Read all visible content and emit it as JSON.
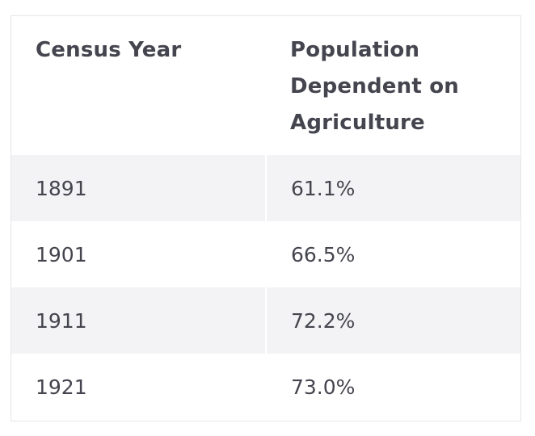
{
  "table": {
    "headers": [
      "Census Year",
      "Population Dependent on Agriculture"
    ],
    "rows": [
      [
        "1891",
        "61.1%"
      ],
      [
        "1901",
        "66.5%"
      ],
      [
        "1911",
        "72.2%"
      ],
      [
        "1921",
        "73.0%"
      ]
    ]
  }
}
